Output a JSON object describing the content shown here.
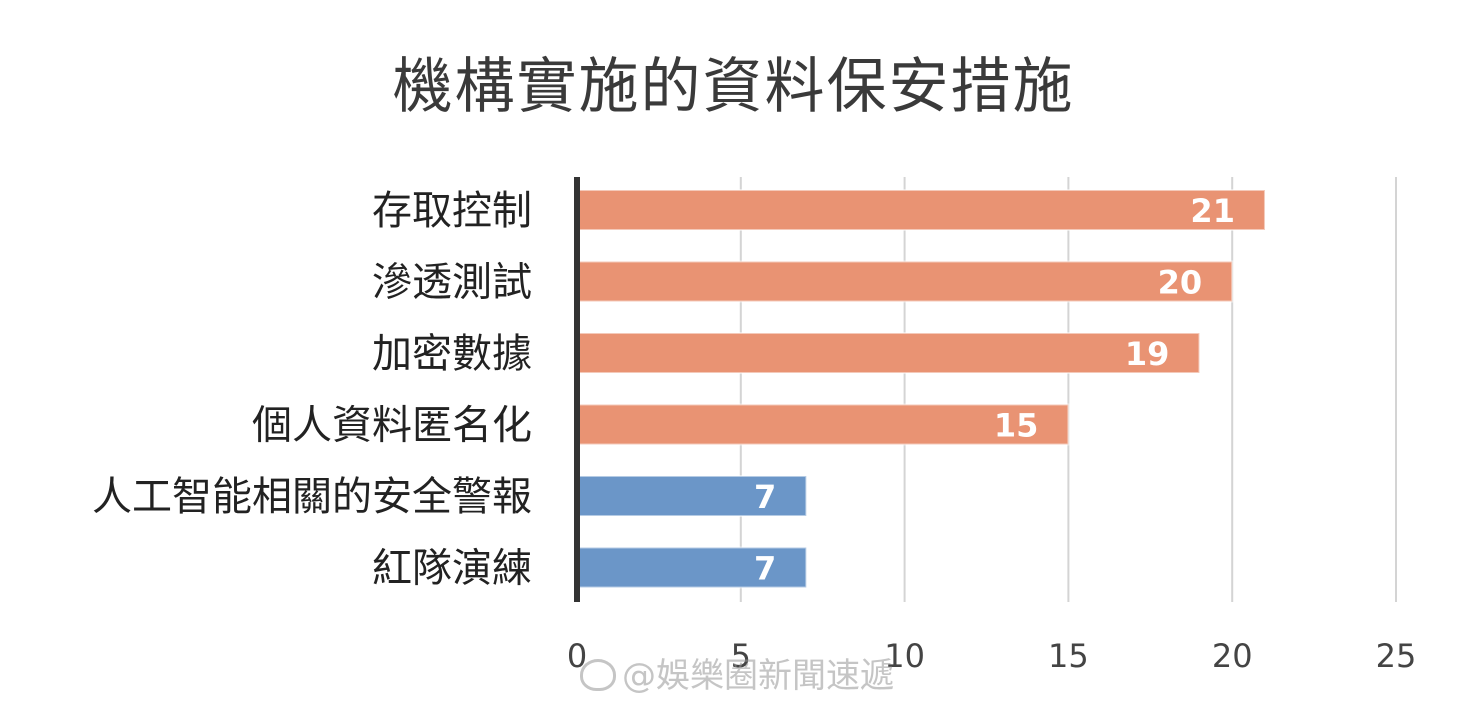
{
  "chart_data": {
    "type": "bar",
    "orientation": "horizontal",
    "title": "機構實施的資料保安措施",
    "categories": [
      "存取控制",
      "滲透測試",
      "加密數據",
      "個人資料匿名化",
      "人工智能相關的安全警報",
      "紅隊演練"
    ],
    "values": [
      21,
      20,
      19,
      15,
      7,
      7
    ],
    "bar_colors": [
      "#E99373",
      "#E99373",
      "#E99373",
      "#E99373",
      "#6B96C8",
      "#6B96C8"
    ],
    "xlim": [
      0,
      25
    ],
    "xticks": [
      0,
      5,
      10,
      15,
      20,
      25
    ],
    "xtick_labels": [
      "0",
      "5",
      "10",
      "15",
      "20",
      "25"
    ],
    "grid": "vertical",
    "legend": "none",
    "data_labels": [
      "21",
      "20",
      "19",
      "15",
      "7",
      "7"
    ]
  },
  "watermark": {
    "text": "@娛樂圈新聞速遞",
    "icon": "weibo-icon"
  }
}
